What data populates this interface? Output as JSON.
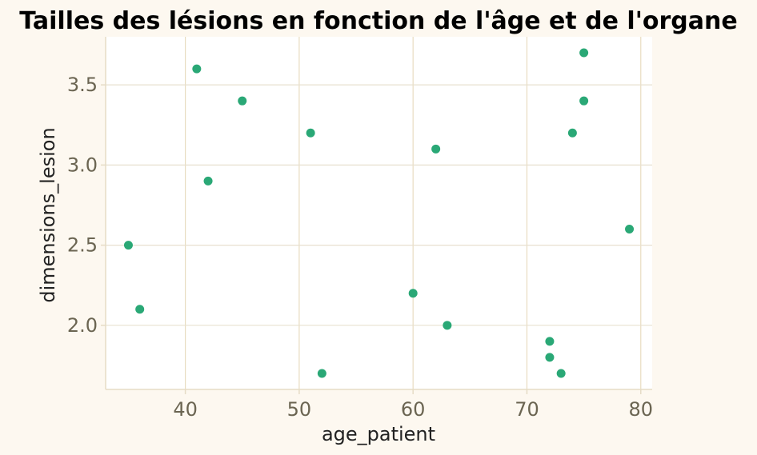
{
  "chart_data": {
    "type": "scatter",
    "title": "Tailles des lésions en fonction de l'âge et de l'organe",
    "xlabel": "age_patient",
    "ylabel": "dimensions_lesion",
    "xlim": [
      33,
      81
    ],
    "ylim": [
      1.6,
      3.8
    ],
    "xticks": [
      40,
      50,
      60,
      70,
      80
    ],
    "yticks": [
      2.0,
      2.5,
      3.0,
      3.5
    ],
    "xtick_labels": [
      "40",
      "50",
      "60",
      "70",
      "80"
    ],
    "ytick_labels": [
      "2.0",
      "2.5",
      "3.0",
      "3.5"
    ],
    "grid": true,
    "series": [
      {
        "color": "#2aa876",
        "points": [
          {
            "x": 35,
            "y": 2.5
          },
          {
            "x": 36,
            "y": 2.1
          },
          {
            "x": 41,
            "y": 3.6
          },
          {
            "x": 42,
            "y": 2.9
          },
          {
            "x": 45,
            "y": 3.4
          },
          {
            "x": 51,
            "y": 3.2
          },
          {
            "x": 52,
            "y": 1.7
          },
          {
            "x": 60,
            "y": 2.2
          },
          {
            "x": 62,
            "y": 3.1
          },
          {
            "x": 63,
            "y": 2.0
          },
          {
            "x": 72,
            "y": 1.9
          },
          {
            "x": 72,
            "y": 1.8
          },
          {
            "x": 73,
            "y": 1.7
          },
          {
            "x": 74,
            "y": 3.2
          },
          {
            "x": 75,
            "y": 3.7
          },
          {
            "x": 75,
            "y": 3.4
          },
          {
            "x": 79,
            "y": 2.6
          }
        ]
      }
    ],
    "colors": {
      "page_background": "#fdf8f0",
      "plot_background": "#ffffff",
      "grid": "#e8e0cf",
      "x_grid": "#e8dcc0",
      "axis": "#e6dcc6",
      "marker": "#2aa876"
    }
  }
}
